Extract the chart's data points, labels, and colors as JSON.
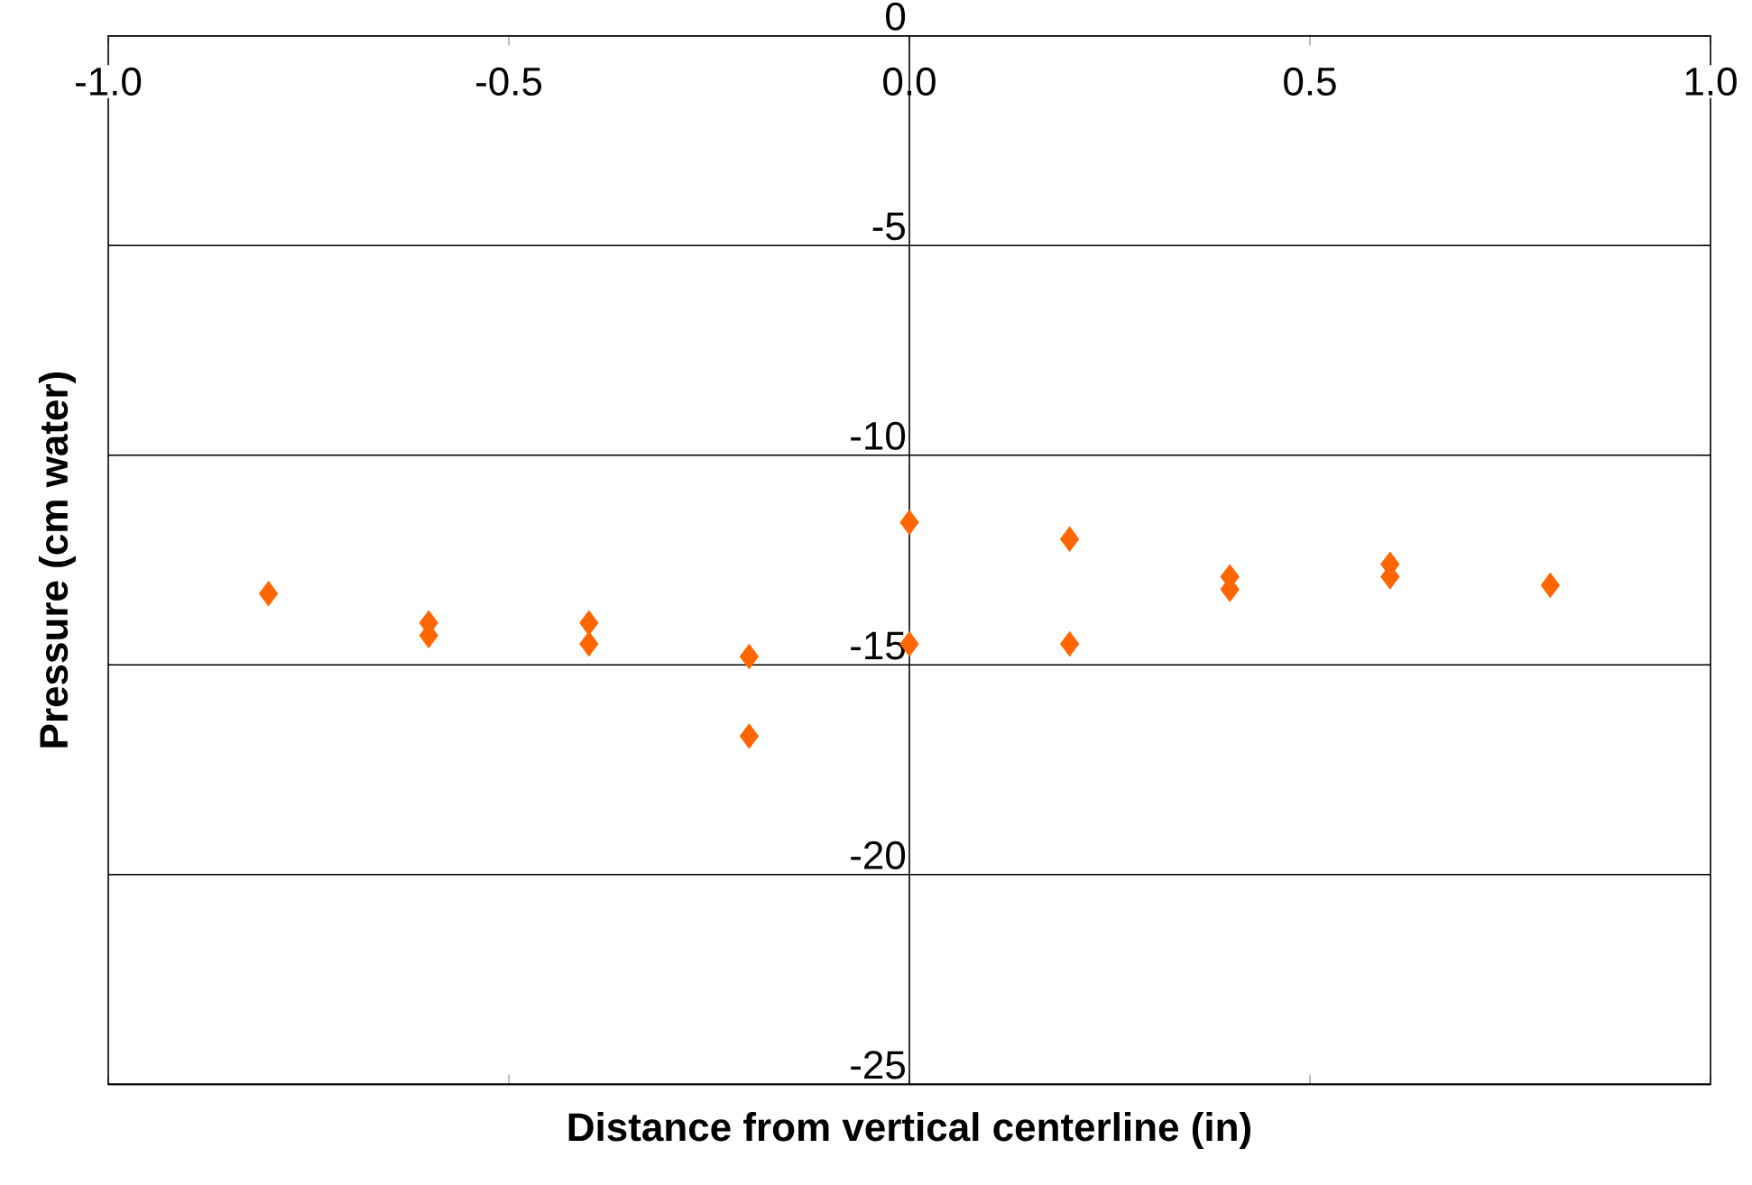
{
  "chart_data": {
    "type": "scatter",
    "xlabel": "Distance from vertical centerline (in)",
    "ylabel": "Pressure (cm water)",
    "x": [
      -0.8,
      -0.6,
      -0.6,
      -0.4,
      -0.4,
      -0.2,
      -0.2,
      0.0,
      0.0,
      0.2,
      0.2,
      0.4,
      0.4,
      0.6,
      0.6,
      0.8
    ],
    "values": [
      -13.3,
      -14.0,
      -14.3,
      -14.0,
      -14.5,
      -14.8,
      -16.7,
      -11.6,
      -14.5,
      -12.0,
      -14.5,
      -12.9,
      -13.2,
      -12.6,
      -12.9,
      -13.1
    ],
    "color": "#ff6600",
    "marker": "diamond",
    "xlim": [
      -1.0,
      1.0
    ],
    "ylim": [
      -25,
      0
    ],
    "xticks": [
      {
        "value": -1.0,
        "label": "-1.0"
      },
      {
        "value": -0.5,
        "label": "-0.5"
      },
      {
        "value": 0.0,
        "label": "0.0"
      },
      {
        "value": 0.5,
        "label": "0.5"
      },
      {
        "value": 1.0,
        "label": "1.0"
      }
    ],
    "yticks": [
      0,
      -5,
      -10,
      -15,
      -20,
      -25
    ],
    "grid": "y"
  }
}
